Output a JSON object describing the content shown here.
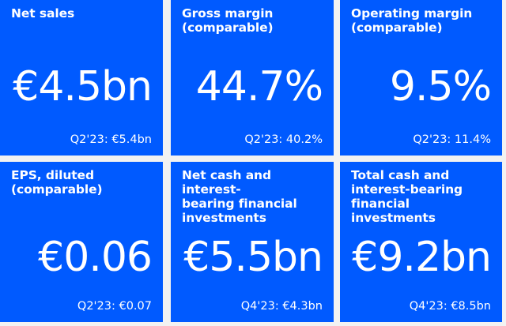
{
  "tiles": [
    {
      "label": "Net sales",
      "value": "€4.5bn",
      "compare": "Q2'23: €5.4bn"
    },
    {
      "label": "Gross margin\n(comparable)",
      "value": "44.7%",
      "compare": "Q2'23: 40.2%"
    },
    {
      "label": "Operating margin\n(comparable)",
      "value": "9.5%",
      "compare": "Q2'23: 11.4%"
    },
    {
      "label": "EPS, diluted\n(comparable)",
      "value": "€0.06",
      "compare": "Q2'23: €0.07"
    },
    {
      "label": "Net cash and interest-\nbearing financial\ninvestments",
      "value": "€5.5bn",
      "compare": "Q4'23: €4.3bn"
    },
    {
      "label": "Total cash and\ninterest-bearing\nfinancial investments",
      "value": "€9.2bn",
      "compare": "Q4'23: €8.5bn"
    }
  ],
  "colors": {
    "tile_background": "#005aff",
    "text": "#ffffff",
    "page_background": "#f2f2f2"
  }
}
